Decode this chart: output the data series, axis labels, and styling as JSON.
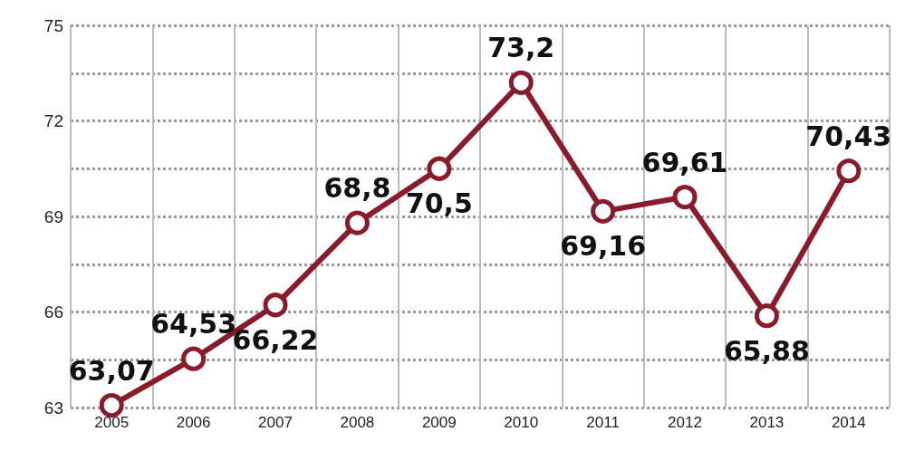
{
  "chart_data": {
    "type": "line",
    "categories": [
      "2005",
      "2006",
      "2007",
      "2008",
      "2009",
      "2010",
      "2011",
      "2012",
      "2013",
      "2014"
    ],
    "series": [
      {
        "color": "#8b1a2b",
        "values": [
          63.07,
          64.53,
          66.22,
          68.8,
          70.5,
          73.2,
          69.16,
          69.61,
          65.88,
          70.43
        ],
        "value_labels": [
          "63,07",
          "64,53",
          "66,22",
          "68,8",
          "70,5",
          "73,2",
          "69,16",
          "69,61",
          "65,88",
          "70,43"
        ]
      }
    ],
    "ylim": [
      63,
      75
    ],
    "yticks": [
      63,
      {
        "value": 64.5,
        "label": null
      },
      66,
      {
        "value": 67.5,
        "label": null
      },
      69,
      {
        "value": 70.5,
        "label": null
      },
      72,
      {
        "value": 73.5,
        "label": null
      },
      75
    ],
    "grid": true,
    "marker": "circle",
    "line_style": "solid"
  }
}
